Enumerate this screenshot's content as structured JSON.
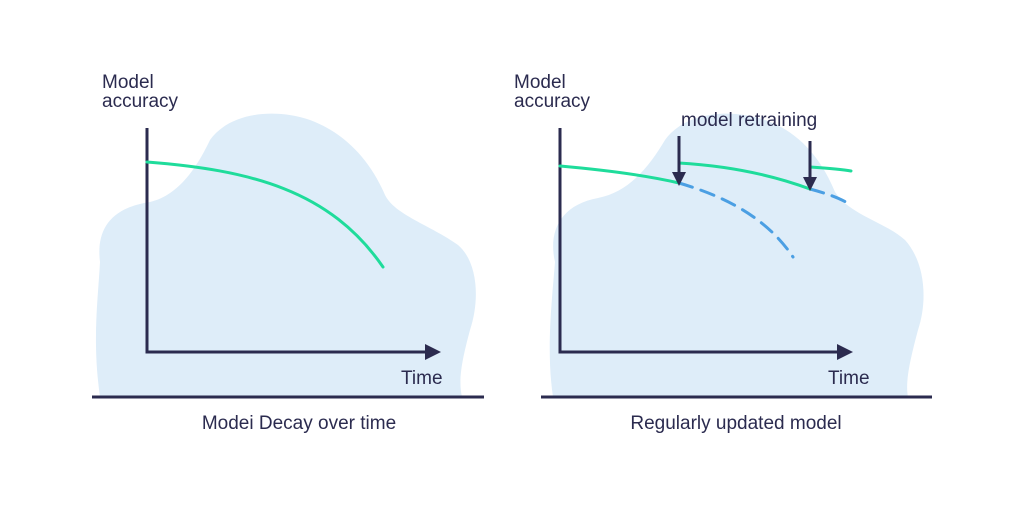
{
  "colors": {
    "background": "#ffffff",
    "blob": "#deedf9",
    "axis": "#2b2b4f",
    "accuracy_line": "#1fdc9b",
    "decay_dashed": "#4b9fe3",
    "text": "#2b2b4f"
  },
  "left_panel": {
    "y_axis_label_line1": "Model",
    "y_axis_label_line2": "accuracy",
    "x_axis_label": "Time",
    "caption": "Modei Decay over time"
  },
  "right_panel": {
    "y_axis_label_line1": "Model",
    "y_axis_label_line2": "accuracy",
    "x_axis_label": "Time",
    "annotation": "model retraining",
    "caption": "Regularly updated model"
  },
  "icons": {
    "axis_arrow": "arrow-right-icon",
    "retrain_arrow": "arrow-down-icon"
  }
}
